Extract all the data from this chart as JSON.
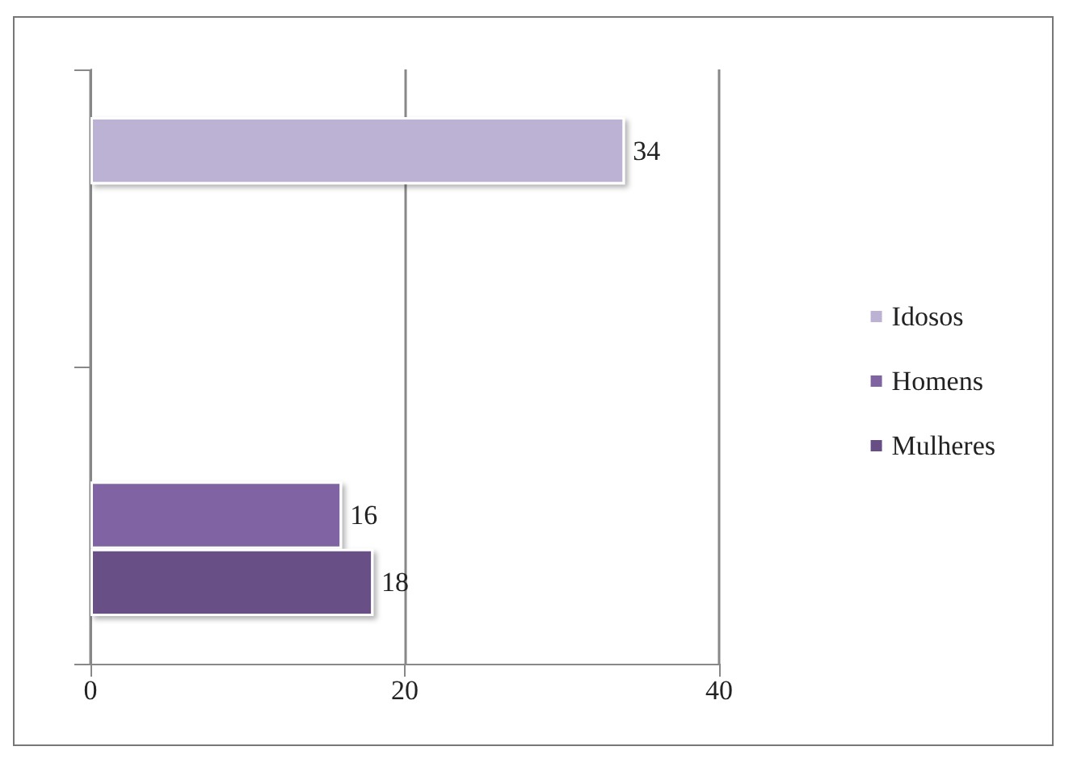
{
  "chart_data": {
    "type": "bar",
    "orientation": "horizontal",
    "categories": [
      null,
      null
    ],
    "series": [
      {
        "name": "Idosos",
        "color": "#bcb3d4",
        "values": [
          34,
          null
        ]
      },
      {
        "name": "Homens",
        "color": "#8064a2",
        "values": [
          null,
          16
        ]
      },
      {
        "name": "Mulheres",
        "color": "#674f86",
        "values": [
          null,
          18
        ]
      }
    ],
    "xlim": [
      0,
      40
    ],
    "xticks": [
      0,
      20,
      40
    ],
    "grid": "x",
    "legend": "right",
    "data_labels": true
  }
}
